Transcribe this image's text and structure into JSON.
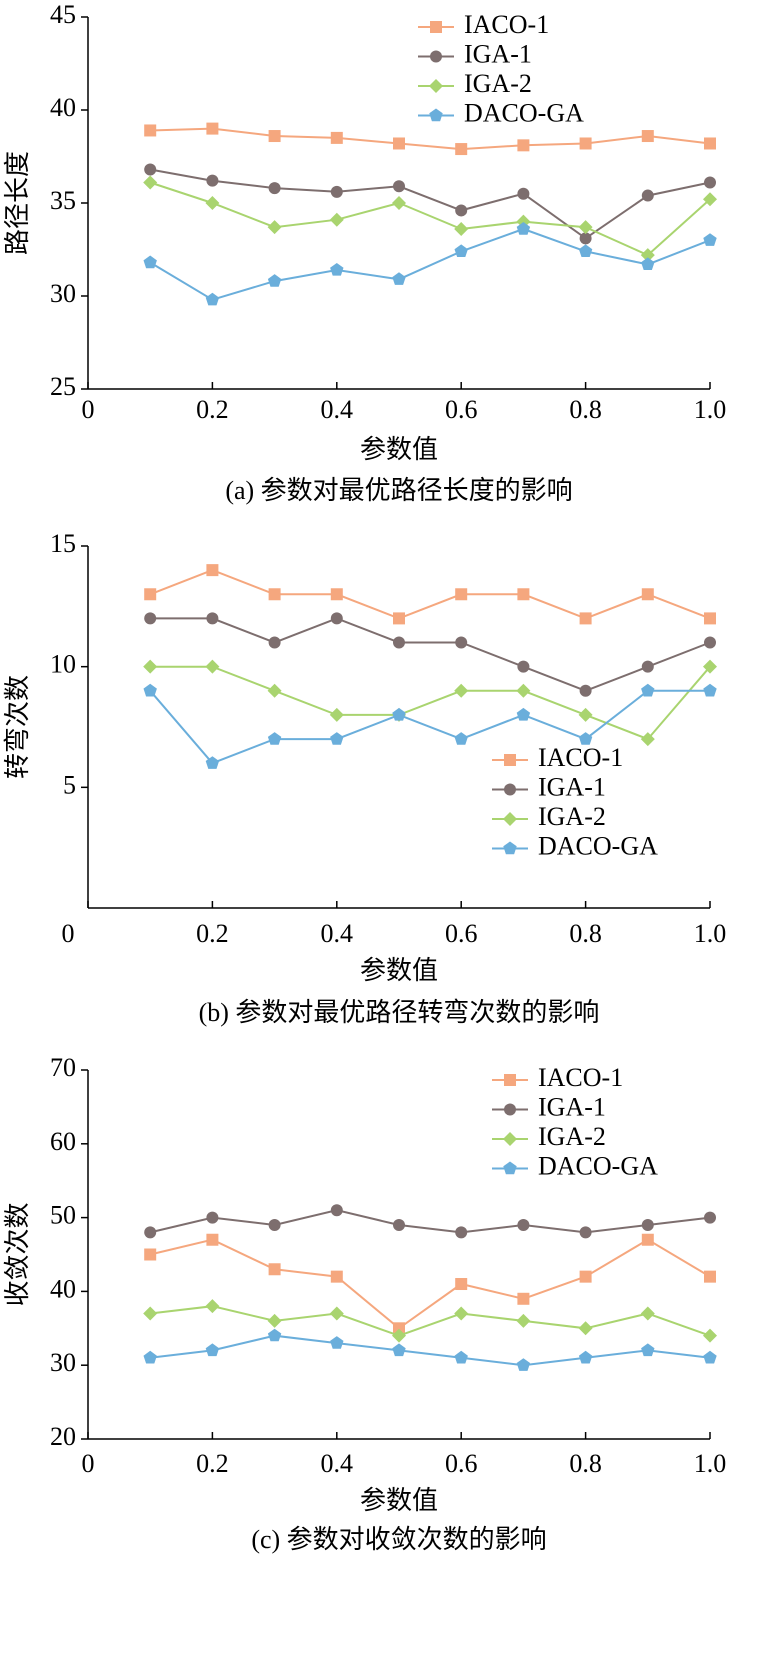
{
  "chart_data": [
    {
      "type": "line",
      "caption": "(a)  参数对最优路径长度的影响",
      "xlabel": "参数值",
      "ylabel": "路径长度",
      "x": [
        0.1,
        0.2,
        0.3,
        0.4,
        0.5,
        0.6,
        0.7,
        0.8,
        0.9,
        {
          "value": 1,
          "label": "1.0"
        }
      ],
      "xlim": [
        0,
        1
      ],
      "xticks": [
        0,
        0.2,
        0.4,
        0.6,
        0.8,
        {
          "value": 1,
          "label": "1.0"
        }
      ],
      "ylim": [
        25,
        45
      ],
      "yticks": [
        25,
        30,
        35,
        40,
        45
      ],
      "legend": "upper center",
      "series": [
        {
          "name": "IACO-1",
          "color": "#f5a77e",
          "marker": "square",
          "values": [
            38.9,
            39.0,
            38.6,
            38.5,
            38.2,
            37.9,
            38.1,
            38.2,
            38.6,
            38.2
          ]
        },
        {
          "name": "IGA-1",
          "color": "#7d6e6e",
          "marker": "circle",
          "values": [
            36.8,
            36.2,
            35.8,
            35.6,
            35.9,
            34.6,
            35.5,
            33.1,
            35.4,
            36.1
          ]
        },
        {
          "name": "IGA-2",
          "color": "#a9d46f",
          "marker": "diamond",
          "values": [
            36.1,
            35.0,
            33.7,
            34.1,
            35.0,
            33.6,
            34.0,
            33.7,
            32.2,
            35.2
          ]
        },
        {
          "name": "DACO-GA",
          "color": "#6aaedb",
          "marker": "pentagon",
          "values": [
            31.8,
            29.8,
            30.8,
            31.4,
            30.9,
            32.4,
            33.6,
            32.4,
            31.7,
            33.0
          ]
        }
      ]
    },
    {
      "type": "line",
      "caption": "(b)  参数对最优路径转弯次数的影响",
      "xlabel": "参数值",
      "ylabel": "转弯次数",
      "x": [
        0.1,
        0.2,
        0.3,
        0.4,
        0.5,
        0.6,
        0.7,
        0.8,
        0.9,
        {
          "value": 1,
          "label": "1.0"
        }
      ],
      "xlim": [
        0,
        1
      ],
      "xticks": [
        0,
        0.2,
        0.4,
        0.6,
        0.8,
        {
          "value": 1,
          "label": "1.0"
        }
      ],
      "ylim": [
        0,
        15
      ],
      "yticks": [
        5,
        10,
        15
      ],
      "legend": "lower right",
      "series": [
        {
          "name": "IACO-1",
          "color": "#f5a77e",
          "marker": "square",
          "values": [
            13,
            14,
            13,
            13,
            12,
            13,
            13,
            12,
            13,
            12
          ]
        },
        {
          "name": "IGA-1",
          "color": "#7d6e6e",
          "marker": "circle",
          "values": [
            12,
            12,
            11,
            12,
            11,
            11,
            10,
            9,
            10,
            11
          ]
        },
        {
          "name": "IGA-2",
          "color": "#a9d46f",
          "marker": "diamond",
          "values": [
            10,
            10,
            9,
            8,
            8,
            9,
            9,
            8,
            7,
            10
          ]
        },
        {
          "name": "DACO-GA",
          "color": "#6aaedb",
          "marker": "pentagon",
          "values": [
            9,
            6,
            7,
            7,
            8,
            7,
            8,
            7,
            9,
            9
          ]
        }
      ]
    },
    {
      "type": "line",
      "caption": "(c)  参数对收敛次数的影响",
      "xlabel": "参数值",
      "ylabel": "收敛次数",
      "x": [
        0.1,
        0.2,
        0.3,
        0.4,
        0.5,
        0.6,
        0.7,
        0.8,
        0.9,
        {
          "value": 1,
          "label": "1.0"
        }
      ],
      "xlim": [
        0,
        1
      ],
      "xticks": [
        0,
        0.2,
        0.4,
        0.6,
        0.8,
        {
          "value": 1,
          "label": "1.0"
        }
      ],
      "ylim": [
        20,
        70
      ],
      "yticks": [
        20,
        30,
        40,
        50,
        60,
        70
      ],
      "legend": "upper right",
      "series": [
        {
          "name": "IACO-1",
          "color": "#f5a77e",
          "marker": "square",
          "values": [
            45,
            47,
            43,
            42,
            35,
            41,
            39,
            42,
            47,
            42
          ]
        },
        {
          "name": "IGA-1",
          "color": "#7d6e6e",
          "marker": "circle",
          "values": [
            48,
            50,
            49,
            51,
            49,
            48,
            49,
            48,
            49,
            50
          ]
        },
        {
          "name": "IGA-2",
          "color": "#a9d46f",
          "marker": "diamond",
          "values": [
            37,
            38,
            36,
            37,
            34,
            37,
            36,
            35,
            37,
            34
          ]
        },
        {
          "name": "DACO-GA",
          "color": "#6aaedb",
          "marker": "pentagon",
          "values": [
            31,
            32,
            34,
            33,
            32,
            31,
            30,
            31,
            32,
            31
          ]
        }
      ]
    }
  ]
}
